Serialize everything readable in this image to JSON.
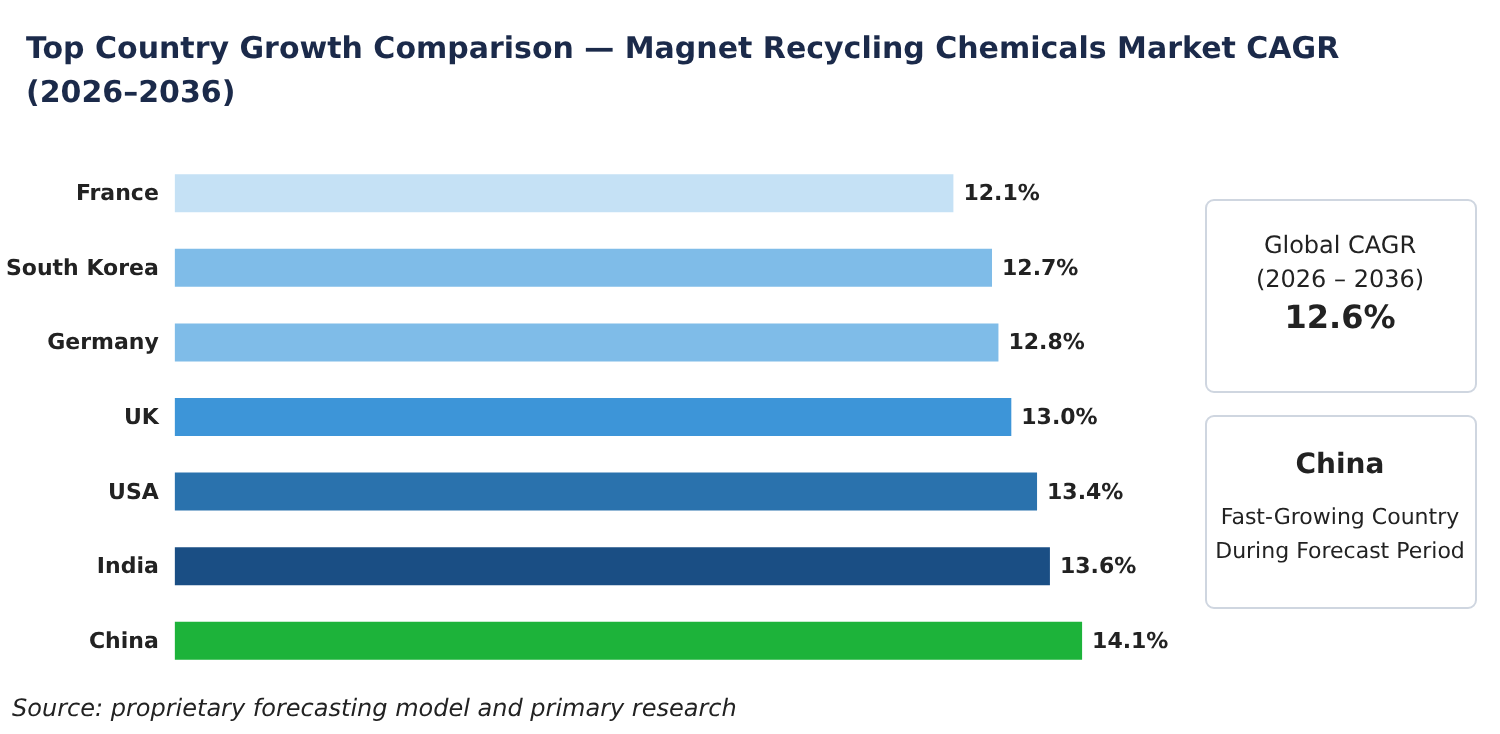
{
  "chart_data": {
    "type": "bar",
    "orientation": "horizontal",
    "title": "Top Country Growth Comparison — Magnet Recycling Chemicals Market CAGR\n(2026–2036)",
    "categories": [
      "France",
      "South Korea",
      "Germany",
      "UK",
      "USA",
      "India",
      "China"
    ],
    "values": [
      12.1,
      12.7,
      12.8,
      13.0,
      13.4,
      13.6,
      14.1
    ],
    "value_labels": [
      "12.1%",
      "12.7%",
      "12.8%",
      "13.0%",
      "13.4%",
      "13.6%",
      "14.1%"
    ],
    "colors": [
      "#c5e1f5",
      "#7fbce8",
      "#7fbce8",
      "#3d95d8",
      "#2a72ad",
      "#1a4e84",
      "#1db33a"
    ],
    "tick_labels": "y",
    "grid": false,
    "annotations": [
      "Global CAGR\n(2026 – 2036)",
      "12.6%",
      "China",
      "Fast-Growing Country\nDuring Forecast Period",
      "Source: proprietary forecasting model and primary research"
    ]
  }
}
